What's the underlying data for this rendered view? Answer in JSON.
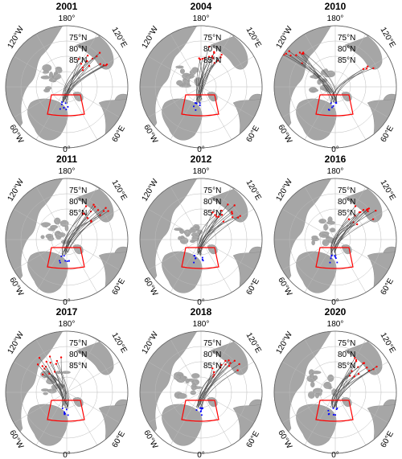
{
  "panels": [
    {
      "year": "2001",
      "drift": "east"
    },
    {
      "year": "2004",
      "drift": "north"
    },
    {
      "year": "2010",
      "drift": "northwest"
    },
    {
      "year": "2011",
      "drift": "east"
    },
    {
      "year": "2012",
      "drift": "east"
    },
    {
      "year": "2016",
      "drift": "east"
    },
    {
      "year": "2017",
      "drift": "west"
    },
    {
      "year": "2018",
      "drift": "east"
    },
    {
      "year": "2020",
      "drift": "east"
    }
  ],
  "labels": {
    "top": "180°",
    "top_left": "120°W",
    "top_right": "120°E",
    "left": "60°W",
    "right": "60°E",
    "bottom": "0°",
    "lat75": "75°N",
    "lat80": "80°N",
    "lat85": "85°N"
  },
  "colors": {
    "land": "#a6a6a6",
    "ocean": "#ffffff",
    "grid": "#bbbbbb",
    "track": "#444444",
    "start": "#ff0000",
    "end": "#0000ff",
    "box": "#ff0000"
  }
}
